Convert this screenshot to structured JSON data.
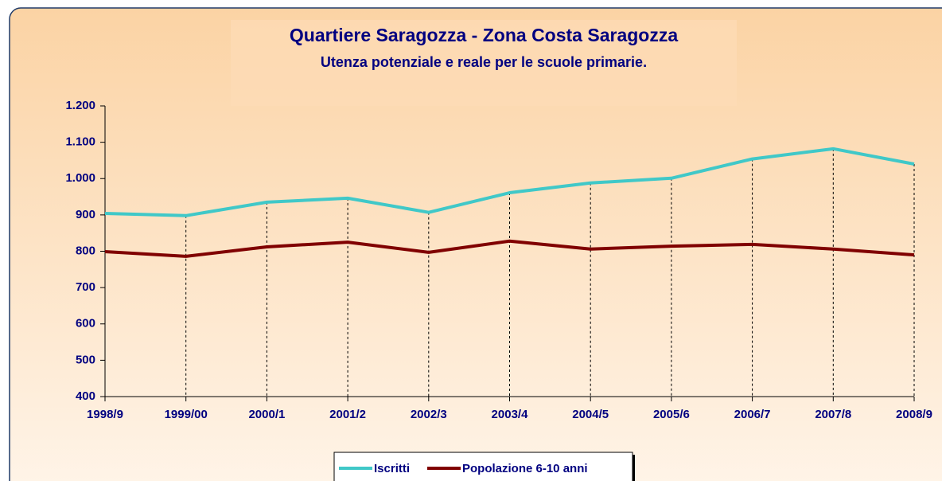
{
  "chart_data": {
    "type": "line",
    "title": "Quartiere Saragozza - Zona Costa Saragozza",
    "subtitle": "Utenza potenziale e reale per le scuole primarie.",
    "categories": [
      "1998/9",
      "1999/00",
      "2000/1",
      "2001/2",
      "2002/3",
      "2003/4",
      "2004/5",
      "2005/6",
      "2006/7",
      "2007/8",
      "2008/9"
    ],
    "series": [
      {
        "name": "Iscritti",
        "color": "#40c8c8",
        "values": [
          904,
          898,
          935,
          946,
          907,
          961,
          988,
          1001,
          1054,
          1082,
          1040
        ]
      },
      {
        "name": "Popolazione 6-10 anni",
        "color": "#800000",
        "values": [
          799,
          786,
          812,
          825,
          797,
          828,
          806,
          814,
          819,
          806,
          790
        ]
      }
    ],
    "ylim": [
      400,
      1200
    ],
    "yticks": [
      400,
      500,
      600,
      700,
      800,
      900,
      {
        "value": 1000,
        "label": "1.000"
      },
      {
        "value": 1100,
        "label": "1.100"
      },
      {
        "value": 1200,
        "label": "1.200"
      }
    ],
    "drop_lines": true,
    "legend": "bottom"
  }
}
